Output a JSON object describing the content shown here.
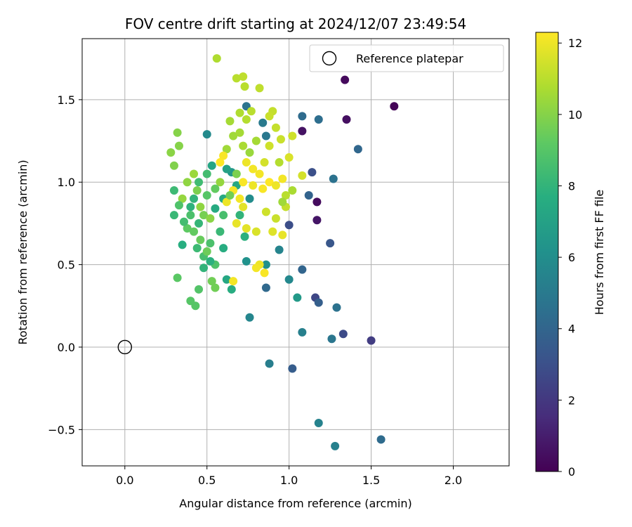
{
  "chart_data": {
    "type": "scatter",
    "title": "FOV centre drift starting at 2024/12/07 23:49:54",
    "xlabel": "Angular distance from reference (arcmin)",
    "ylabel": "Rotation from reference (arcmin)",
    "xlim": [
      -0.26,
      2.34
    ],
    "ylim": [
      -0.72,
      1.87
    ],
    "xticks": [
      0.0,
      0.5,
      1.0,
      1.5,
      2.0
    ],
    "xtick_labels": [
      "0.0",
      "0.5",
      "1.0",
      "1.5",
      "2.0"
    ],
    "yticks": [
      -0.5,
      0.0,
      0.5,
      1.0,
      1.5
    ],
    "ytick_labels": [
      "−0.5",
      "0.0",
      "0.5",
      "1.0",
      "1.5"
    ],
    "grid": true,
    "legend": {
      "position": "top-right",
      "entries": [
        "Reference platepar"
      ]
    },
    "colorbar": {
      "label": "Hours from first FF file",
      "range": [
        0,
        12.3
      ],
      "ticks": [
        0,
        2,
        4,
        6,
        8,
        10,
        12
      ],
      "tick_labels": [
        "0",
        "2",
        "4",
        "6",
        "8",
        "10",
        "12"
      ],
      "colormap": "viridis"
    },
    "reference_point": {
      "name": "Reference platepar",
      "x": 0.0,
      "y": 0.0
    },
    "points": [
      [
        1.64,
        1.46,
        0.1
      ],
      [
        1.34,
        1.62,
        0.3
      ],
      [
        1.35,
        1.38,
        0.5
      ],
      [
        1.17,
        0.88,
        0.4
      ],
      [
        1.08,
        1.31,
        0.6
      ],
      [
        1.17,
        0.77,
        0.7
      ],
      [
        1.5,
        0.04,
        2.2
      ],
      [
        1.33,
        0.08,
        2.8
      ],
      [
        1.16,
        0.3,
        2.6
      ],
      [
        1.0,
        0.74,
        2.9
      ],
      [
        1.25,
        0.63,
        3.3
      ],
      [
        1.14,
        1.06,
        3.0
      ],
      [
        1.02,
        -0.13,
        3.6
      ],
      [
        1.18,
        0.27,
        3.7
      ],
      [
        1.42,
        1.2,
        4.1
      ],
      [
        1.18,
        1.38,
        4.4
      ],
      [
        1.08,
        1.4,
        4.3
      ],
      [
        1.27,
        1.02,
        4.6
      ],
      [
        1.08,
        0.47,
        4.0
      ],
      [
        1.12,
        0.92,
        3.9
      ],
      [
        0.86,
        0.36,
        4.2
      ],
      [
        1.56,
        -0.56,
        4.3
      ],
      [
        1.29,
        0.24,
        4.6
      ],
      [
        1.26,
        0.05,
        4.8
      ],
      [
        0.74,
        1.46,
        4.7
      ],
      [
        0.86,
        1.28,
        4.9
      ],
      [
        0.84,
        1.36,
        5.0
      ],
      [
        0.88,
        -0.1,
        5.2
      ],
      [
        1.08,
        0.09,
        5.3
      ],
      [
        1.18,
        -0.46,
        5.4
      ],
      [
        1.28,
        -0.6,
        5.3
      ],
      [
        0.94,
        0.59,
        5.5
      ],
      [
        0.76,
        0.18,
        5.6
      ],
      [
        1.0,
        0.41,
        5.7
      ],
      [
        0.5,
        1.29,
        5.8
      ],
      [
        0.74,
        0.52,
        6.2
      ],
      [
        0.86,
        0.5,
        6.1
      ],
      [
        1.05,
        0.3,
        6.6
      ],
      [
        0.76,
        0.9,
        5.9
      ],
      [
        0.65,
        1.06,
        6.5
      ],
      [
        0.62,
        1.08,
        7.0
      ],
      [
        0.53,
        1.1,
        7.2
      ],
      [
        0.68,
        0.98,
        7.3
      ],
      [
        0.6,
        0.9,
        7.4
      ],
      [
        0.55,
        0.84,
        7.5
      ],
      [
        0.6,
        0.6,
        7.6
      ],
      [
        0.62,
        0.41,
        7.3
      ],
      [
        0.65,
        0.35,
        7.6
      ],
      [
        0.73,
        0.67,
        7.8
      ],
      [
        0.7,
        0.8,
        8.0
      ],
      [
        0.35,
        0.62,
        7.7
      ],
      [
        0.4,
        0.85,
        7.9
      ],
      [
        0.42,
        0.9,
        8.0
      ],
      [
        0.45,
        0.75,
        8.1
      ],
      [
        0.3,
        0.8,
        8.2
      ],
      [
        0.3,
        0.95,
        8.3
      ],
      [
        0.45,
        1.0,
        8.4
      ],
      [
        0.5,
        1.05,
        8.5
      ],
      [
        0.48,
        0.55,
        8.6
      ],
      [
        0.52,
        0.63,
        8.7
      ],
      [
        0.55,
        0.5,
        8.8
      ],
      [
        0.45,
        0.35,
        8.9
      ],
      [
        0.43,
        0.25,
        9.0
      ],
      [
        0.4,
        0.28,
        9.0
      ],
      [
        0.32,
        0.42,
        9.1
      ],
      [
        0.38,
        0.72,
        9.2
      ],
      [
        0.42,
        0.7,
        9.3
      ],
      [
        0.46,
        0.65,
        9.4
      ],
      [
        0.5,
        0.58,
        9.5
      ],
      [
        0.53,
        0.4,
        9.6
      ],
      [
        0.55,
        0.36,
        9.6
      ],
      [
        0.48,
        0.8,
        9.7
      ],
      [
        0.44,
        0.95,
        9.8
      ],
      [
        0.3,
        1.1,
        9.9
      ],
      [
        0.33,
        1.22,
        10.0
      ],
      [
        0.28,
        1.18,
        10.1
      ],
      [
        0.32,
        1.3,
        10.0
      ],
      [
        0.38,
        1.0,
        10.2
      ],
      [
        0.35,
        0.9,
        10.3
      ],
      [
        0.42,
        1.05,
        10.4
      ],
      [
        0.46,
        0.85,
        10.2
      ],
      [
        0.52,
        0.78,
        10.1
      ],
      [
        0.58,
        1.0,
        10.3
      ],
      [
        0.62,
        1.2,
        10.5
      ],
      [
        0.66,
        1.28,
        10.5
      ],
      [
        0.7,
        1.3,
        10.6
      ],
      [
        0.72,
        1.22,
        10.7
      ],
      [
        0.64,
        1.37,
        10.6
      ],
      [
        0.7,
        1.42,
        10.8
      ],
      [
        0.74,
        1.38,
        10.9
      ],
      [
        0.77,
        1.43,
        11.0
      ],
      [
        0.82,
        1.57,
        11.1
      ],
      [
        0.73,
        1.58,
        11.0
      ],
      [
        0.72,
        1.64,
        11.1
      ],
      [
        0.68,
        1.63,
        11.0
      ],
      [
        0.56,
        1.75,
        10.8
      ],
      [
        0.9,
        1.43,
        11.2
      ],
      [
        0.88,
        1.4,
        11.3
      ],
      [
        0.92,
        1.33,
        11.2
      ],
      [
        0.95,
        1.26,
        11.3
      ],
      [
        0.88,
        1.22,
        11.4
      ],
      [
        0.85,
        1.12,
        11.5
      ],
      [
        1.0,
        1.15,
        11.6
      ],
      [
        1.02,
        1.28,
        11.4
      ],
      [
        1.08,
        1.04,
        11.5
      ],
      [
        0.98,
        0.85,
        11.2
      ],
      [
        0.92,
        0.78,
        11.3
      ],
      [
        0.86,
        0.82,
        11.4
      ],
      [
        0.8,
        0.7,
        11.6
      ],
      [
        0.74,
        0.72,
        11.8
      ],
      [
        0.9,
        0.7,
        11.7
      ],
      [
        0.96,
        0.68,
        11.9
      ],
      [
        0.82,
        0.5,
        12.0
      ],
      [
        0.8,
        0.48,
        12.1
      ],
      [
        0.85,
        0.45,
        12.2
      ],
      [
        0.66,
        0.4,
        12.1
      ],
      [
        0.62,
        0.88,
        12.0
      ],
      [
        0.66,
        0.95,
        12.2
      ],
      [
        0.7,
        0.9,
        12.1
      ],
      [
        0.72,
        1.0,
        12.2
      ],
      [
        0.78,
        0.98,
        12.0
      ],
      [
        0.82,
        1.05,
        12.1
      ],
      [
        0.84,
        0.96,
        12.2
      ],
      [
        0.88,
        1.0,
        12.3
      ],
      [
        0.92,
        0.98,
        12.0
      ],
      [
        0.96,
        1.02,
        12.1
      ],
      [
        0.6,
        1.16,
        12.2
      ],
      [
        0.58,
        1.12,
        12.3
      ],
      [
        0.74,
        1.12,
        12.0
      ],
      [
        0.78,
        1.08,
        12.1
      ],
      [
        0.72,
        0.85,
        11.8
      ],
      [
        0.68,
        0.75,
        11.9
      ],
      [
        0.5,
        0.92,
        9.0
      ],
      [
        0.55,
        0.96,
        9.3
      ],
      [
        0.4,
        0.8,
        8.7
      ],
      [
        0.36,
        0.76,
        8.5
      ],
      [
        0.33,
        0.86,
        8.8
      ],
      [
        0.44,
        0.6,
        8.3
      ],
      [
        0.48,
        0.48,
        8.0
      ],
      [
        0.52,
        0.52,
        7.8
      ],
      [
        0.58,
        0.7,
        8.2
      ],
      [
        0.6,
        0.8,
        8.6
      ],
      [
        0.64,
        0.92,
        9.6
      ],
      [
        0.68,
        1.05,
        9.8
      ],
      [
        0.76,
        1.18,
        10.4
      ],
      [
        0.8,
        1.25,
        10.6
      ],
      [
        0.94,
        1.12,
        10.9
      ],
      [
        0.98,
        0.92,
        11.0
      ],
      [
        1.02,
        0.95,
        10.7
      ],
      [
        0.96,
        0.88,
        10.5
      ]
    ]
  }
}
